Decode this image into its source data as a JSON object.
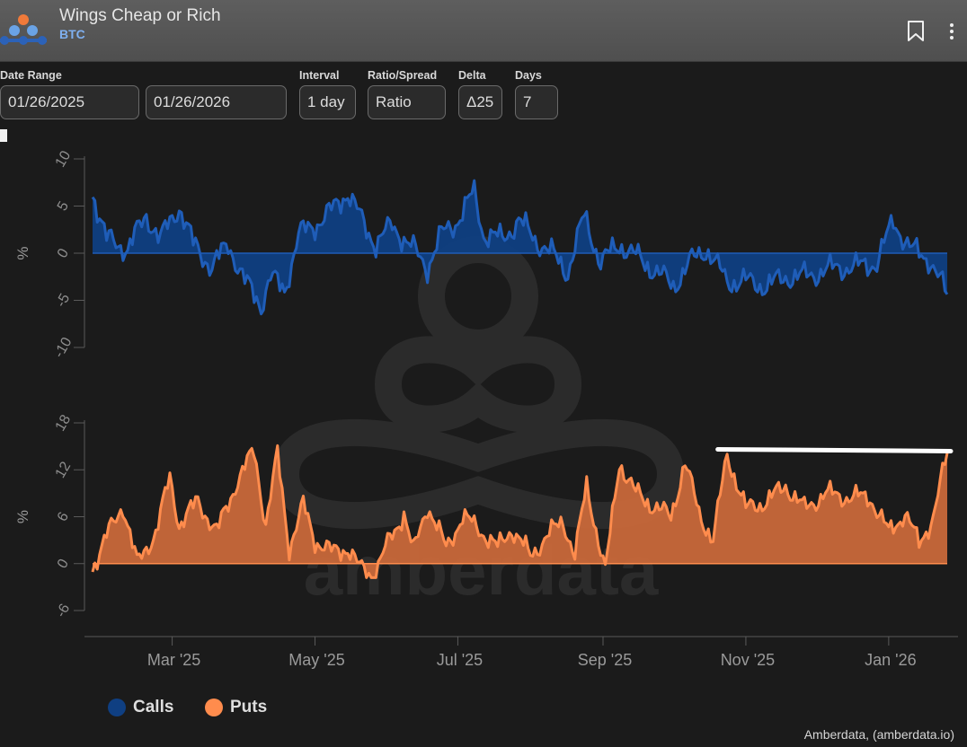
{
  "header": {
    "title": "Wings Cheap or Rich",
    "subtitle": "BTC"
  },
  "controls": {
    "date_range_label": "Date Range",
    "start_date": "01/26/2025",
    "end_date": "01/26/2026",
    "interval_label": "Interval",
    "interval_value": "1 day",
    "ratio_label": "Ratio/Spread",
    "ratio_value": "Ratio",
    "delta_label": "Delta",
    "delta_value": "Δ25",
    "days_label": "Days",
    "days_value": "7"
  },
  "colors": {
    "calls": "#0f3f82",
    "calls_line": "#1f5db8",
    "puts": "#c8683a",
    "puts_line": "#ff8c4d",
    "annotation": "#ffffff"
  },
  "legend": {
    "calls": "Calls",
    "puts": "Puts"
  },
  "credit": "Amberdata, (amberdata.io)",
  "watermark": "amberdata",
  "chart_data": [
    {
      "type": "area",
      "name": "calls-chart",
      "ylabel": "%",
      "ylim": [
        -10,
        10
      ],
      "yticks": [
        -10,
        -5,
        0,
        5,
        10
      ],
      "ytick_labels": [
        "-10",
        "-5",
        "0",
        "5",
        "10"
      ],
      "x_start": "2025-01-26",
      "x_end": "2026-01-26",
      "series": [
        {
          "name": "Calls",
          "key_dates": [
            "2025-01-26",
            "2025-02-01",
            "2025-02-10",
            "2025-02-18",
            "2025-02-24",
            "2025-03-04",
            "2025-03-10",
            "2025-03-18",
            "2025-03-25",
            "2025-04-01",
            "2025-04-08",
            "2025-04-12",
            "2025-04-18",
            "2025-04-24",
            "2025-05-01",
            "2025-05-08",
            "2025-05-15",
            "2025-05-22",
            "2025-05-27",
            "2025-06-03",
            "2025-06-10",
            "2025-06-18",
            "2025-06-24",
            "2025-07-01",
            "2025-07-08",
            "2025-07-12",
            "2025-07-20",
            "2025-07-27",
            "2025-08-03",
            "2025-08-10",
            "2025-08-17",
            "2025-08-24",
            "2025-08-31",
            "2025-09-08",
            "2025-09-16",
            "2025-09-24",
            "2025-10-01",
            "2025-10-08",
            "2025-10-15",
            "2025-10-24",
            "2025-11-01",
            "2025-11-10",
            "2025-11-18",
            "2025-11-25",
            "2025-12-03",
            "2025-12-10",
            "2025-12-18",
            "2025-12-27",
            "2026-01-03",
            "2026-01-10",
            "2026-01-18",
            "2026-01-26"
          ],
          "key_values": [
            6.5,
            1.5,
            0.5,
            4.0,
            1.5,
            5.0,
            1.0,
            -1.5,
            1.0,
            -3.0,
            -5.5,
            -2.5,
            -4.0,
            2.0,
            3.0,
            4.5,
            6.5,
            3.0,
            1.0,
            3.0,
            1.0,
            -1.5,
            2.0,
            3.5,
            6.5,
            2.0,
            1.5,
            3.5,
            1.5,
            0.0,
            -2.0,
            4.0,
            -1.0,
            1.0,
            -0.5,
            -2.0,
            -3.5,
            -1.0,
            0.5,
            -3.0,
            -3.0,
            -3.5,
            -2.5,
            -2.5,
            -2.0,
            -1.5,
            -1.5,
            -1.0,
            3.5,
            0.5,
            -0.5,
            -4.5
          ]
        }
      ]
    },
    {
      "type": "area",
      "name": "puts-chart",
      "ylabel": "%",
      "ylim": [
        -6,
        18
      ],
      "yticks": [
        -6,
        0,
        6,
        12,
        18
      ],
      "ytick_labels": [
        "-6",
        "0",
        "6",
        "12",
        "18"
      ],
      "x_start": "2025-01-26",
      "x_end": "2026-01-26",
      "xticks": [
        "2025-03-01",
        "2025-05-01",
        "2025-07-01",
        "2025-09-01",
        "2025-11-01",
        "2026-01-01"
      ],
      "xtick_labels": [
        "Mar '25",
        "May '25",
        "Jul '25",
        "Sep '25",
        "Nov '25",
        "Jan '26"
      ],
      "series": [
        {
          "name": "Puts",
          "key_dates": [
            "2025-01-26",
            "2025-02-01",
            "2025-02-08",
            "2025-02-14",
            "2025-02-22",
            "2025-02-28",
            "2025-03-04",
            "2025-03-12",
            "2025-03-20",
            "2025-03-28",
            "2025-04-05",
            "2025-04-10",
            "2025-04-15",
            "2025-04-20",
            "2025-04-26",
            "2025-05-01",
            "2025-05-08",
            "2025-05-15",
            "2025-05-20",
            "2025-05-26",
            "2025-06-01",
            "2025-06-08",
            "2025-06-12",
            "2025-06-18",
            "2025-06-26",
            "2025-07-03",
            "2025-07-10",
            "2025-07-18",
            "2025-07-24",
            "2025-08-01",
            "2025-08-08",
            "2025-08-15",
            "2025-08-20",
            "2025-08-25",
            "2025-09-02",
            "2025-09-08",
            "2025-09-15",
            "2025-09-22",
            "2025-09-30",
            "2025-10-06",
            "2025-10-12",
            "2025-10-18",
            "2025-10-24",
            "2025-11-01",
            "2025-11-10",
            "2025-11-18",
            "2025-11-26",
            "2025-12-05",
            "2025-12-15",
            "2025-12-24",
            "2026-01-01",
            "2026-01-08",
            "2026-01-14",
            "2026-01-20",
            "2026-01-26"
          ],
          "key_values": [
            -0.5,
            3.5,
            7.5,
            0.0,
            4.0,
            11.0,
            5.0,
            8.0,
            4.0,
            10.0,
            14.5,
            5.0,
            14.0,
            2.0,
            7.5,
            3.0,
            1.5,
            2.0,
            -0.5,
            -1.5,
            2.5,
            6.5,
            1.5,
            7.5,
            2.0,
            6.0,
            4.5,
            2.0,
            4.5,
            1.0,
            3.5,
            5.5,
            1.0,
            10.0,
            -1.0,
            13.0,
            9.0,
            7.5,
            6.0,
            13.0,
            6.5,
            3.0,
            14.0,
            7.0,
            8.0,
            10.0,
            7.0,
            9.0,
            8.5,
            8.5,
            4.0,
            6.5,
            2.5,
            6.0,
            14.0
          ]
        }
      ],
      "annotation": {
        "type": "horizontal-line",
        "x_start": "2025-10-20",
        "x_end": "2026-01-26",
        "y": 14.5,
        "color": "#ffffff"
      }
    }
  ]
}
